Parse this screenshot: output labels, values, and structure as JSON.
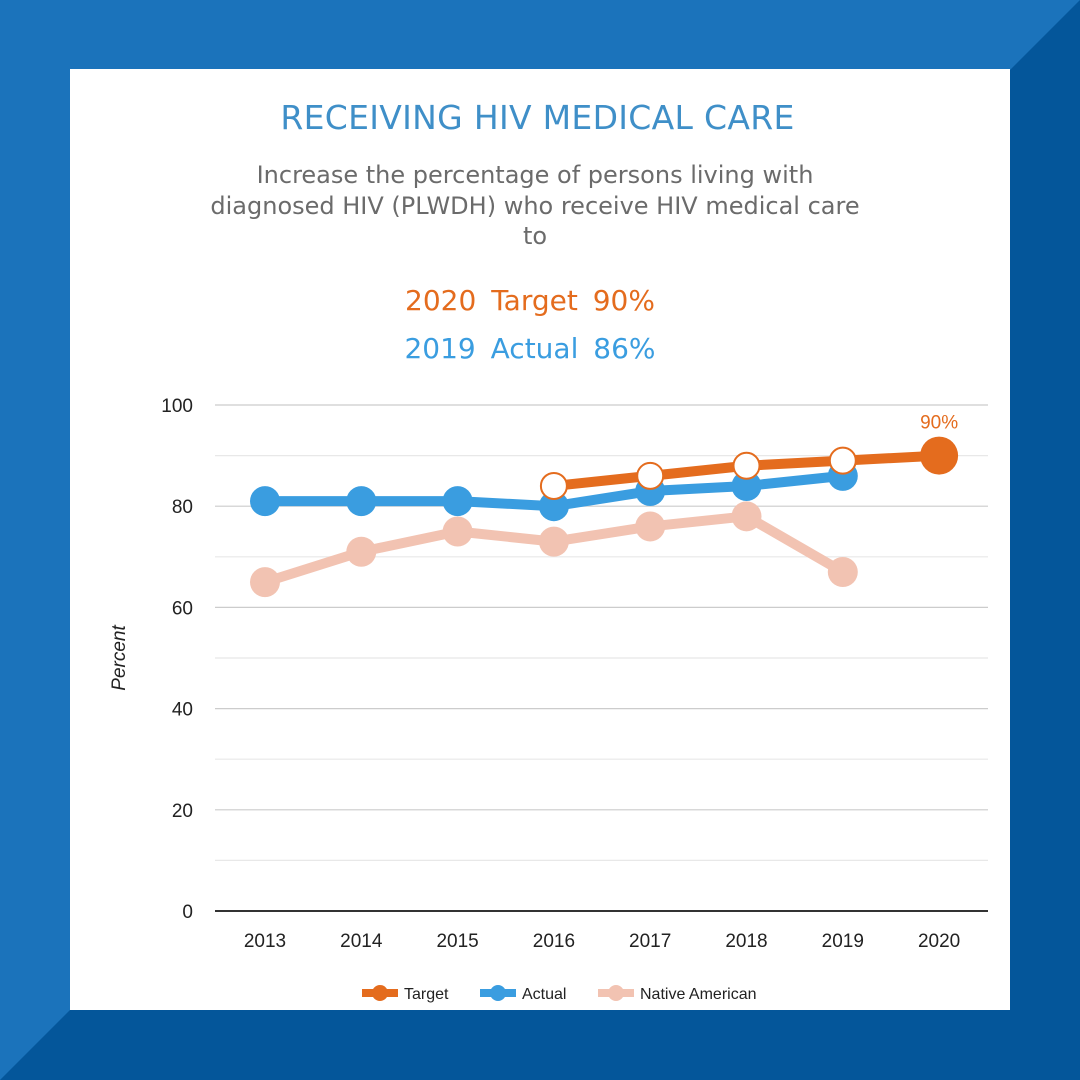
{
  "colors": {
    "frame": "#1b73bb",
    "frame_dark": "#04569a",
    "title": "#3f8fc8",
    "target": "#e46c1e",
    "actual": "#3a9de0",
    "native": "#f2c3b2"
  },
  "header": {
    "title": "RECEIVING HIV MEDICAL CARE",
    "subtitle": "Increase the percentage of persons living with diagnosed HIV (PLWDH) who receive HIV medical care to"
  },
  "kpis": {
    "target_label": "2020 Target 90%",
    "actual_label": "2019 Actual 86%"
  },
  "chart_data": {
    "type": "line",
    "x": [
      "2013",
      "2014",
      "2015",
      "2016",
      "2017",
      "2018",
      "2019",
      "2020"
    ],
    "ylabel": "Percent",
    "xlabel": "",
    "ylim": [
      0,
      100
    ],
    "yticks": [
      0,
      20,
      40,
      60,
      80,
      100
    ],
    "grid": true,
    "legend_position": "bottom",
    "series": [
      {
        "name": "Target",
        "color": "#e46c1e",
        "values": [
          null,
          null,
          null,
          84,
          86,
          88,
          89,
          90
        ]
      },
      {
        "name": "Actual",
        "color": "#3a9de0",
        "values": [
          81,
          81,
          81,
          80,
          83,
          84,
          86,
          null
        ]
      },
      {
        "name": "Native American",
        "color": "#f2c3b2",
        "values": [
          65,
          71,
          75,
          73,
          76,
          78,
          67,
          null
        ]
      }
    ],
    "annotations": [
      {
        "series": "Target",
        "x": "2020",
        "text": "90%"
      }
    ]
  }
}
